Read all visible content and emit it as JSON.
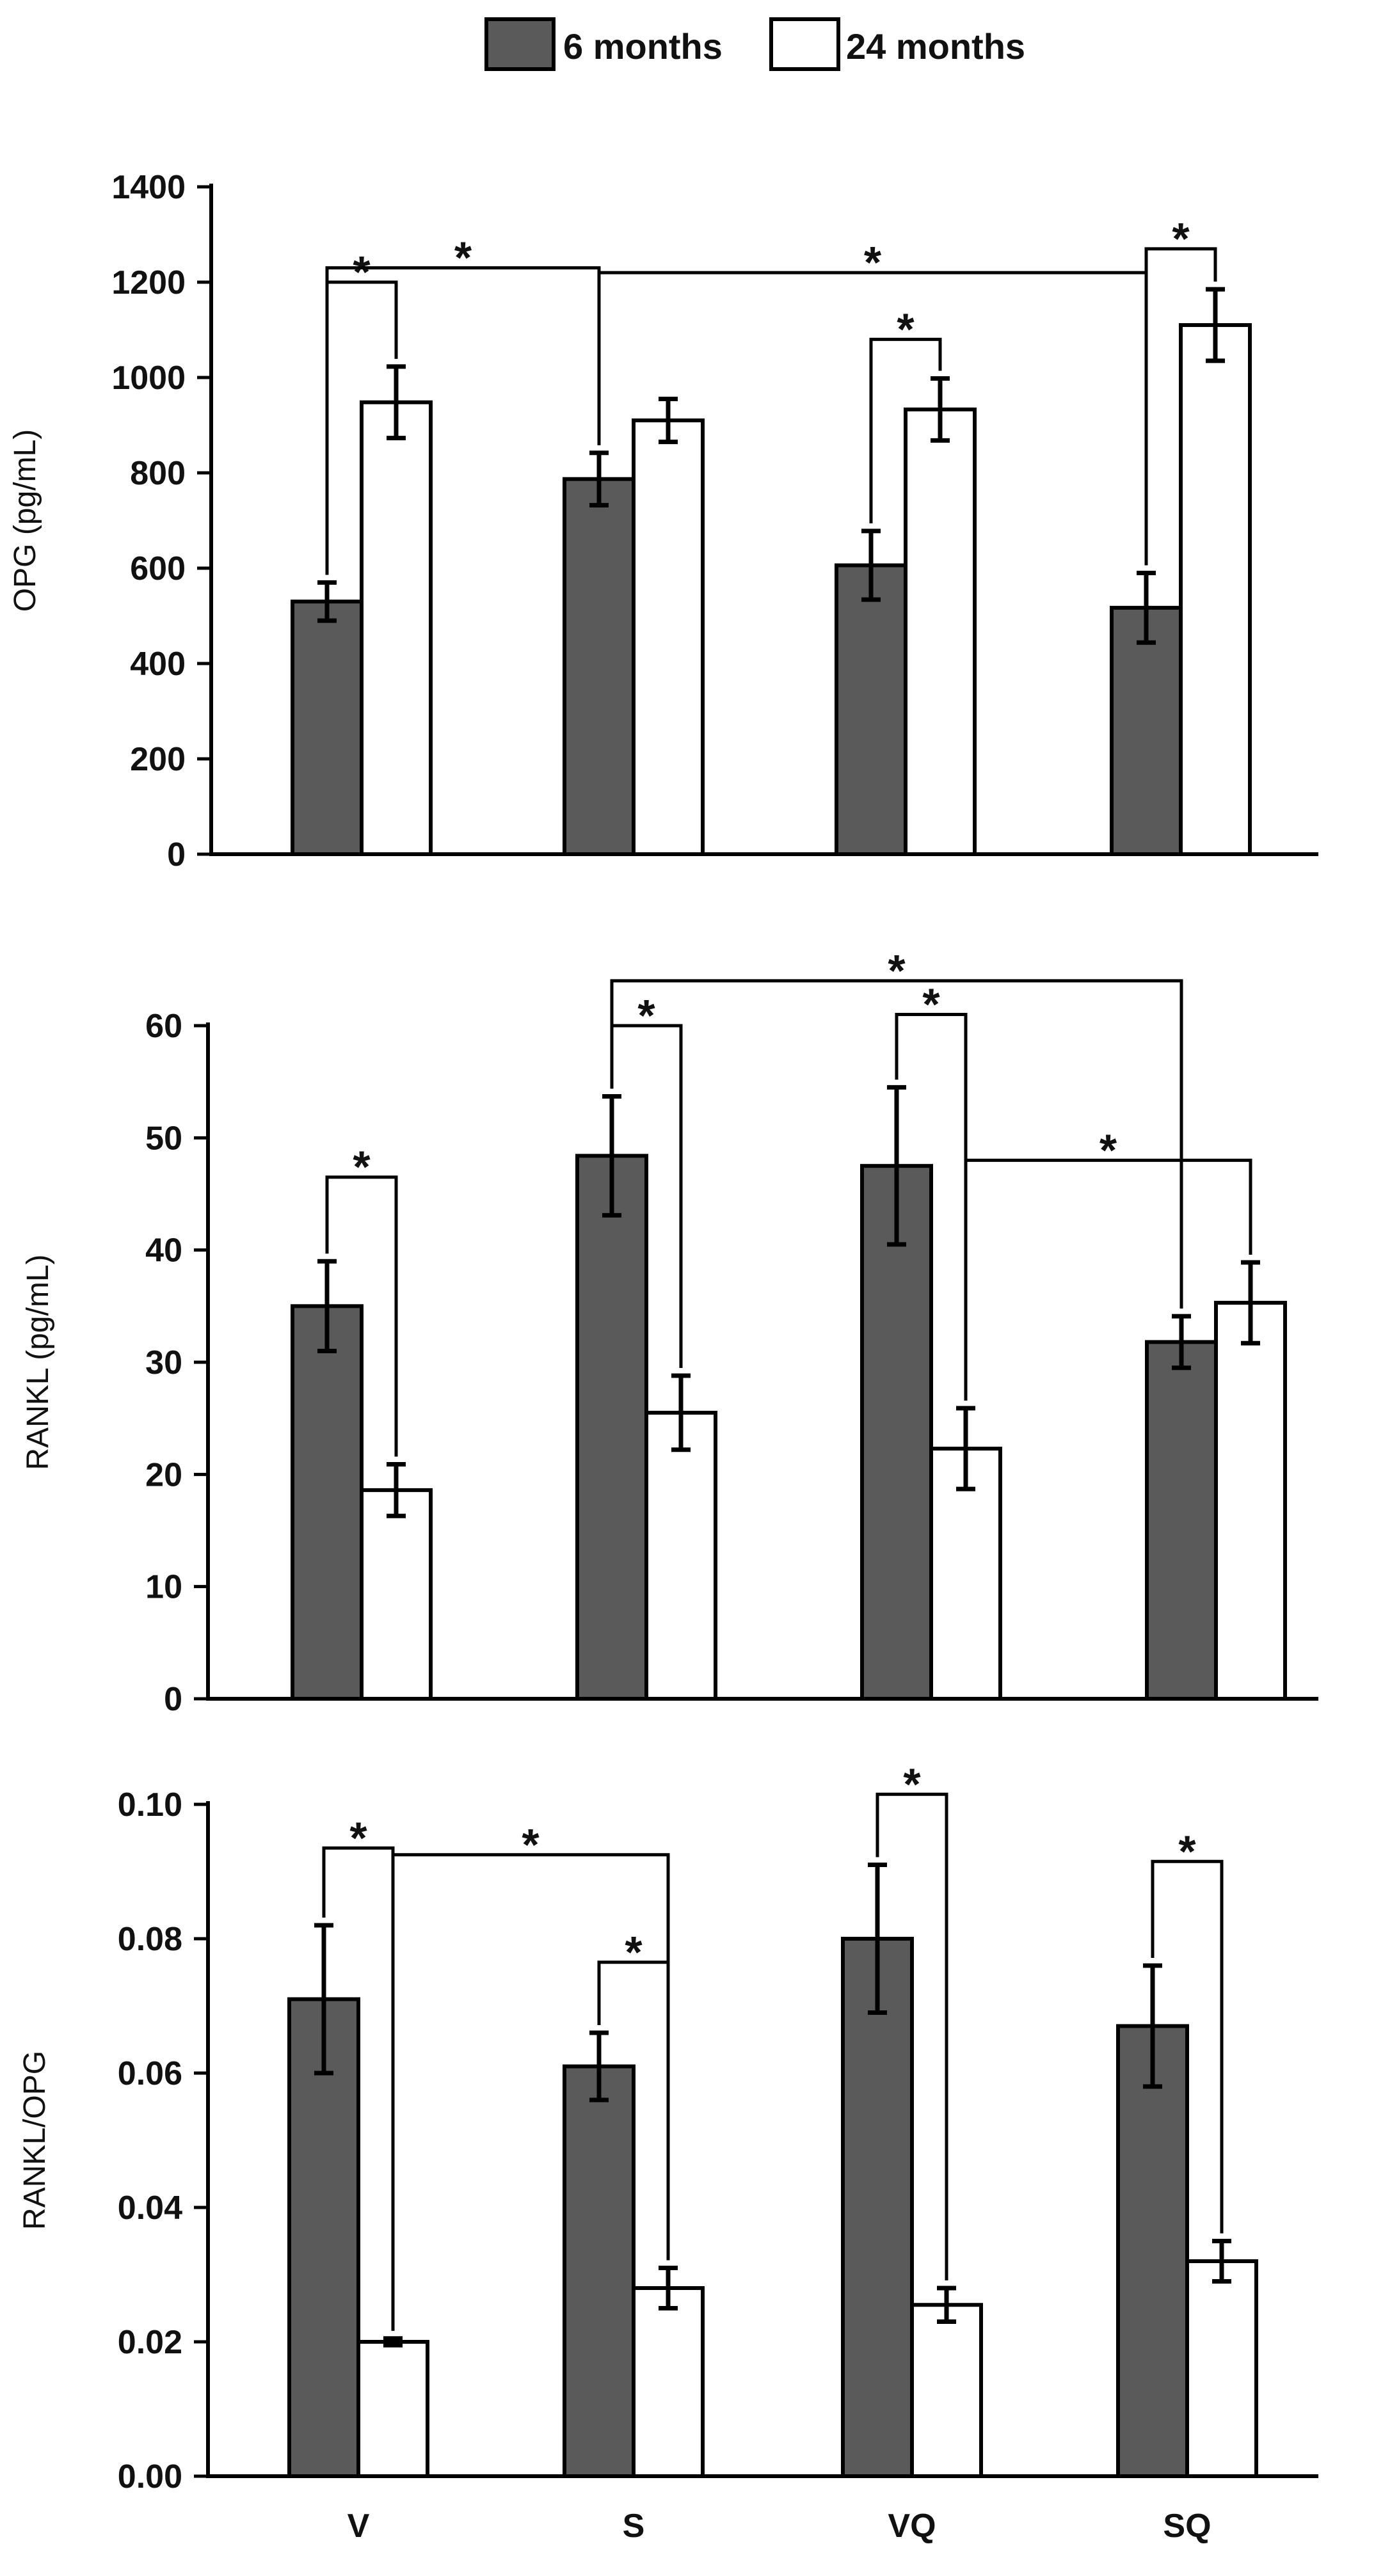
{
  "legend": [
    {
      "label": "6 months",
      "color": "#5a5a5a"
    },
    {
      "label": "24 months",
      "color": "#ffffff"
    }
  ],
  "chart_data": [
    {
      "type": "bar",
      "title": "",
      "xlabel": "",
      "ylabel": "OPG (pg/mL)",
      "ylim": [
        0,
        1400
      ],
      "yticks": [
        "0",
        "200",
        "400",
        "600",
        "800",
        "1000",
        "1200",
        "1400"
      ],
      "categories": [
        "V",
        "S",
        "VQ",
        "SQ"
      ],
      "show_category_labels": false,
      "series": [
        {
          "name": "6 months",
          "values": [
            530,
            787,
            606,
            517
          ],
          "errors": [
            40,
            55,
            72,
            73
          ]
        },
        {
          "name": "24 months",
          "values": [
            948,
            910,
            933,
            1110
          ],
          "errors": [
            75,
            45,
            65,
            75
          ]
        }
      ],
      "significance": [
        {
          "from": {
            "cat": 0,
            "series": 0
          },
          "to": {
            "cat": 0,
            "series": 1
          },
          "level": 1200,
          "label": "*"
        },
        {
          "from": {
            "cat": 0,
            "series": 0
          },
          "to": {
            "cat": 1,
            "series": 0
          },
          "level": 1230,
          "label": "*"
        },
        {
          "from": {
            "cat": 1,
            "series": 0
          },
          "to": {
            "cat": 3,
            "series": 0
          },
          "level": 1220,
          "label": "*"
        },
        {
          "from": {
            "cat": 2,
            "series": 0
          },
          "to": {
            "cat": 2,
            "series": 1
          },
          "level": 1080,
          "label": "*"
        },
        {
          "from": {
            "cat": 3,
            "series": 0
          },
          "to": {
            "cat": 3,
            "series": 1
          },
          "level": 1270,
          "label": "*"
        }
      ]
    },
    {
      "type": "bar",
      "title": "",
      "xlabel": "",
      "ylabel": "RANKL (pg/mL)",
      "ylim": [
        0,
        60
      ],
      "yticks": [
        "0",
        "10",
        "20",
        "30",
        "40",
        "50",
        "60"
      ],
      "categories": [
        "V",
        "S",
        "VQ",
        "SQ"
      ],
      "show_category_labels": false,
      "series": [
        {
          "name": "6 months",
          "values": [
            35.0,
            48.4,
            47.5,
            31.8
          ],
          "errors": [
            4.0,
            5.3,
            7.0,
            2.3
          ]
        },
        {
          "name": "24 months",
          "values": [
            18.6,
            25.5,
            22.3,
            35.3
          ],
          "errors": [
            2.3,
            3.3,
            3.6,
            3.6
          ]
        }
      ],
      "significance": [
        {
          "from": {
            "cat": 0,
            "series": 0
          },
          "to": {
            "cat": 0,
            "series": 1
          },
          "level": 46.5,
          "label": "*"
        },
        {
          "from": {
            "cat": 1,
            "series": 0
          },
          "to": {
            "cat": 1,
            "series": 1
          },
          "level": 60.0,
          "label": "*"
        },
        {
          "from": {
            "cat": 1,
            "series": 0
          },
          "to": {
            "cat": 3,
            "series": 0
          },
          "level": 64.0,
          "label": "*"
        },
        {
          "from": {
            "cat": 2,
            "series": 0
          },
          "to": {
            "cat": 2,
            "series": 1
          },
          "level": 61.0,
          "label": "*"
        },
        {
          "from": {
            "cat": 2,
            "series": 1
          },
          "to": {
            "cat": 3,
            "series": 1
          },
          "level": 48.0,
          "label": "*"
        }
      ]
    },
    {
      "type": "bar",
      "title": "",
      "xlabel": "",
      "ylabel": "RANKL/OPG",
      "ylim": [
        0,
        0.1
      ],
      "yticks": [
        "0.00",
        "0.02",
        "0.04",
        "0.06",
        "0.08",
        "0.10"
      ],
      "categories": [
        "V",
        "S",
        "VQ",
        "SQ"
      ],
      "show_category_labels": true,
      "series": [
        {
          "name": "6 months",
          "values": [
            0.071,
            0.061,
            0.08,
            0.067
          ],
          "errors": [
            0.011,
            0.005,
            0.011,
            0.009
          ]
        },
        {
          "name": "24 months",
          "values": [
            0.02,
            0.028,
            0.0255,
            0.032
          ],
          "errors": [
            0.0005,
            0.003,
            0.0025,
            0.003
          ]
        }
      ],
      "significance": [
        {
          "from": {
            "cat": 0,
            "series": 0
          },
          "to": {
            "cat": 0,
            "series": 1
          },
          "level": 0.0935,
          "label": "*"
        },
        {
          "from": {
            "cat": 0,
            "series": 1
          },
          "to": {
            "cat": 1,
            "series": 1
          },
          "level": 0.0925,
          "label": "*"
        },
        {
          "from": {
            "cat": 1,
            "series": 0
          },
          "to": {
            "cat": 1,
            "series": 1
          },
          "level": 0.0765,
          "label": "*"
        },
        {
          "from": {
            "cat": 2,
            "series": 0
          },
          "to": {
            "cat": 2,
            "series": 1
          },
          "level": 0.1015,
          "label": "*"
        },
        {
          "from": {
            "cat": 3,
            "series": 0
          },
          "to": {
            "cat": 3,
            "series": 1
          },
          "level": 0.0915,
          "label": "*"
        }
      ]
    }
  ]
}
